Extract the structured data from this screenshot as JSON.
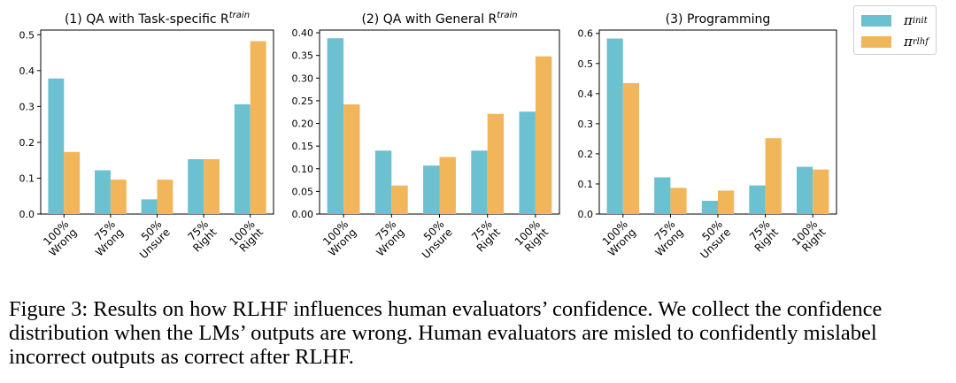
{
  "chart_data": [
    {
      "type": "bar",
      "title": "(1) QA with Task-specific R",
      "title_superscript": "train",
      "categories": [
        "100%\nWrong",
        "75%\nWrong",
        "50%\nUnsure",
        "75%\nRight",
        "100%\nRight"
      ],
      "series": [
        {
          "name": "π_init",
          "values": [
            0.378,
            0.122,
            0.041,
            0.153,
            0.306
          ]
        },
        {
          "name": "π_rlhf",
          "values": [
            0.173,
            0.096,
            0.096,
            0.153,
            0.482
          ]
        }
      ],
      "ylim": [
        0,
        0.513
      ],
      "yticks": [
        "0.0",
        "0.1",
        "0.2",
        "0.3",
        "0.4",
        "0.5"
      ],
      "ytick_values": [
        0,
        0.1,
        0.2,
        0.3,
        0.4,
        0.5
      ]
    },
    {
      "type": "bar",
      "title": "(2) QA with General R",
      "title_superscript": "train",
      "categories": [
        "100%\nWrong",
        "75%\nWrong",
        "50%\nUnsure",
        "75%\nRight",
        "100%\nRight"
      ],
      "series": [
        {
          "name": "π_init",
          "values": [
            0.388,
            0.14,
            0.107,
            0.14,
            0.226
          ]
        },
        {
          "name": "π_rlhf",
          "values": [
            0.242,
            0.063,
            0.126,
            0.221,
            0.348
          ]
        }
      ],
      "ylim": [
        0,
        0.406
      ],
      "yticks": [
        "0.00",
        "0.05",
        "0.10",
        "0.15",
        "0.20",
        "0.25",
        "0.30",
        "0.35",
        "0.40"
      ],
      "ytick_values": [
        0,
        0.05,
        0.1,
        0.15,
        0.2,
        0.25,
        0.3,
        0.35,
        0.4
      ]
    },
    {
      "type": "bar",
      "title": "(3) Programming",
      "title_superscript": "",
      "categories": [
        "100%\nWrong",
        "75%\nWrong",
        "50%\nUnsure",
        "75%\nRight",
        "100%\nRight"
      ],
      "series": [
        {
          "name": "π_init",
          "values": [
            0.583,
            0.122,
            0.044,
            0.095,
            0.157
          ]
        },
        {
          "name": "π_rlhf",
          "values": [
            0.435,
            0.087,
            0.078,
            0.252,
            0.148
          ]
        }
      ],
      "ylim": [
        0,
        0.611
      ],
      "yticks": [
        "0.0",
        "0.1",
        "0.2",
        "0.3",
        "0.4",
        "0.5",
        "0.6"
      ],
      "ytick_values": [
        0,
        0.1,
        0.2,
        0.3,
        0.4,
        0.5,
        0.6
      ]
    }
  ],
  "legend": {
    "position": "top-right",
    "items": [
      {
        "symbol": "π",
        "subscript": "init",
        "color": "#6bc1d0"
      },
      {
        "symbol": "π",
        "subscript": "rlhf",
        "color": "#f2b65a"
      }
    ]
  },
  "caption": "Figure 3: Results on how RLHF influences human evaluators’ confidence. We collect the confidence distribution when the LMs’ outputs are wrong. Human evaluators are misled to confidently mislabel incorrect outputs as correct after RLHF."
}
